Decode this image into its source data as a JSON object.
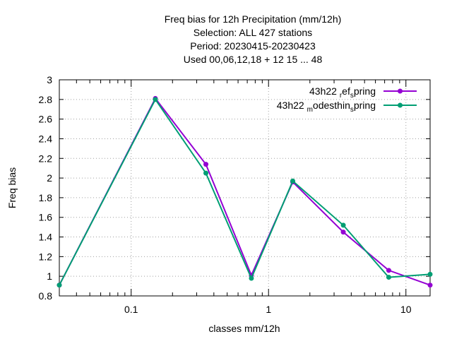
{
  "chart_data": {
    "type": "line",
    "title_lines": [
      "Freq bias  for 12h Precipitation (mm/12h)",
      "Selection: ALL    427 stations",
      "Period: 20230415-20230423",
      "Used  00,06,12,18  + 12 15 ... 48"
    ],
    "xlabel": "classes mm/12h",
    "ylabel": "Freq bias",
    "x_scale": "log",
    "xlim": [
      0.03,
      15
    ],
    "ylim": [
      0.8,
      3.0
    ],
    "x_ticks": [
      0.1,
      1,
      10
    ],
    "x_tick_labels": [
      "0.1",
      "1",
      "10"
    ],
    "y_ticks": [
      0.8,
      1.0,
      1.2,
      1.4,
      1.6,
      1.8,
      2.0,
      2.2,
      2.4,
      2.6,
      2.8,
      3.0
    ],
    "y_tick_labels": [
      "0.8",
      "1",
      "1.2",
      "1.4",
      "1.6",
      "1.8",
      "2",
      "2.2",
      "2.4",
      "2.6",
      "2.8",
      "3"
    ],
    "grid": true,
    "legend_position": "top-right",
    "series": [
      {
        "legend_main": "43h22",
        "legend_rest": [
          {
            "text": "r",
            "sub": true
          },
          {
            "text": "ef",
            "sub": false
          },
          {
            "text": "s",
            "sub": true
          },
          {
            "text": "pring",
            "sub": false
          }
        ],
        "color": "#9400d3",
        "x": [
          0.03,
          0.15,
          0.35,
          0.75,
          1.5,
          3.5,
          7.5,
          15
        ],
        "y": [
          0.91,
          2.81,
          2.14,
          1.01,
          1.96,
          1.45,
          1.06,
          0.91
        ]
      },
      {
        "legend_main": "43h22",
        "legend_rest": [
          {
            "text": "m",
            "sub": true
          },
          {
            "text": "odesthin",
            "sub": false
          },
          {
            "text": "s",
            "sub": true
          },
          {
            "text": "pring",
            "sub": false
          }
        ],
        "color": "#009e73",
        "x": [
          0.03,
          0.15,
          0.35,
          0.75,
          1.5,
          3.5,
          7.5,
          15
        ],
        "y": [
          0.91,
          2.8,
          2.05,
          0.98,
          1.97,
          1.52,
          0.99,
          1.02
        ]
      }
    ]
  }
}
